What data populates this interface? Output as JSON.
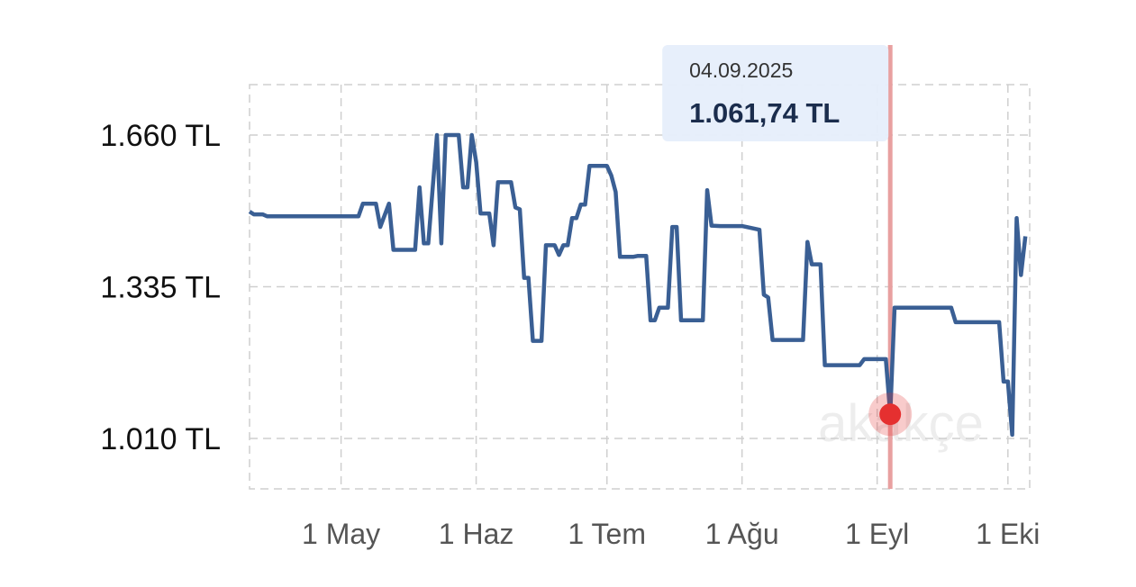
{
  "chart_data": {
    "type": "line",
    "x": [
      "2025-04-10",
      "2025-04-11",
      "2025-04-13",
      "2025-04-14",
      "2025-05-05",
      "2025-05-06",
      "2025-05-09",
      "2025-05-10",
      "2025-05-12",
      "2025-05-13",
      "2025-05-18",
      "2025-05-19",
      "2025-05-20",
      "2025-05-21",
      "2025-05-23",
      "2025-05-24",
      "2025-05-25",
      "2025-05-28",
      "2025-05-29",
      "2025-05-30",
      "2025-05-31",
      "2025-06-01",
      "2025-06-02",
      "2025-06-04",
      "2025-06-05",
      "2025-06-06",
      "2025-06-09",
      "2025-06-10",
      "2025-06-11",
      "2025-06-12",
      "2025-06-13",
      "2025-06-14",
      "2025-06-16",
      "2025-06-17",
      "2025-06-19",
      "2025-06-20",
      "2025-06-21",
      "2025-06-22",
      "2025-06-23",
      "2025-06-24",
      "2025-06-25",
      "2025-06-26",
      "2025-06-27",
      "2025-07-01",
      "2025-07-02",
      "2025-07-03",
      "2025-07-04",
      "2025-07-07",
      "2025-07-08",
      "2025-07-10",
      "2025-07-11",
      "2025-07-12",
      "2025-07-13",
      "2025-07-15",
      "2025-07-16",
      "2025-07-17",
      "2025-07-18",
      "2025-07-23",
      "2025-07-24",
      "2025-07-25",
      "2025-07-27",
      "2025-08-01",
      "2025-08-02",
      "2025-08-05",
      "2025-08-06",
      "2025-08-07",
      "2025-08-08",
      "2025-08-15",
      "2025-08-16",
      "2025-08-17",
      "2025-08-19",
      "2025-08-20",
      "2025-08-28",
      "2025-08-29",
      "2025-09-03",
      "2025-09-04",
      "2025-09-05",
      "2025-09-18",
      "2025-09-19",
      "2025-09-29",
      "2025-09-30",
      "2025-10-01",
      "2025-10-02",
      "2025-10-03",
      "2025-10-04",
      "2025-10-05"
    ],
    "series": [
      {
        "color": "#3a5f94",
        "values": [
          1496,
          1490,
          1490,
          1486,
          1486,
          1513,
          1513,
          1463,
          1513,
          1414,
          1414,
          1548,
          1428,
          1428,
          1660,
          1428,
          1660,
          1660,
          1548,
          1548,
          1660,
          1602,
          1492,
          1492,
          1424,
          1559,
          1559,
          1505,
          1501,
          1354,
          1354,
          1219,
          1219,
          1424,
          1424,
          1403,
          1424,
          1424,
          1482,
          1482,
          1511,
          1511,
          1594,
          1594,
          1573,
          1538,
          1399,
          1399,
          1401,
          1401,
          1263,
          1263,
          1290,
          1290,
          1463,
          1463,
          1263,
          1263,
          1542,
          1466,
          1465,
          1465,
          1463,
          1457,
          1318,
          1312,
          1221,
          1221,
          1431,
          1383,
          1383,
          1167,
          1167,
          1180,
          1180,
          1061.74,
          1290,
          1290,
          1259,
          1259,
          1132,
          1132,
          1018,
          1482,
          1360,
          1443
        ]
      }
    ],
    "xlim": [
      "2025-04-10",
      "2025-10-06"
    ],
    "xticks": [
      {
        "value": "2025-05-01",
        "label": "1 May"
      },
      {
        "value": "2025-06-01",
        "label": "1 Haz"
      },
      {
        "value": "2025-07-01",
        "label": "1 Tem"
      },
      {
        "value": "2025-08-01",
        "label": "1 Ağu"
      },
      {
        "value": "2025-09-01",
        "label": "1 Eyl"
      },
      {
        "value": "2025-10-01",
        "label": "1 Eki"
      }
    ],
    "ylim": [
      902,
      1768
    ],
    "yticks": [
      {
        "value": 1010,
        "label": "1.010 TL"
      },
      {
        "value": 1335,
        "label": "1.335 TL"
      },
      {
        "value": 1660,
        "label": "1.660 TL"
      }
    ],
    "grid": true,
    "tooltip": {
      "date": "04.09.2025",
      "value": 1061.74,
      "label": "1.061,74 TL"
    },
    "watermark": "akakçe"
  }
}
